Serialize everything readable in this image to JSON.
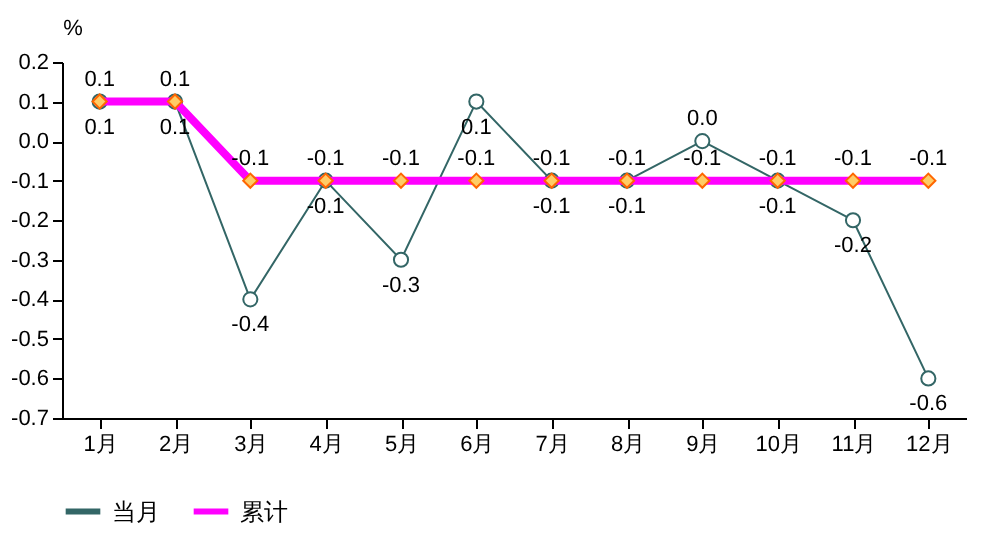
{
  "chart_data": {
    "type": "line",
    "ylabel": "%",
    "categories": [
      "1月",
      "2月",
      "3月",
      "4月",
      "5月",
      "6月",
      "7月",
      "8月",
      "9月",
      "10月",
      "11月",
      "12月"
    ],
    "series": [
      {
        "name": "当月",
        "color": "#336666",
        "marker": "circle",
        "values": [
          0.1,
          0.1,
          -0.4,
          -0.1,
          -0.3,
          0.1,
          -0.1,
          -0.1,
          0.0,
          -0.1,
          -0.2,
          -0.6
        ],
        "value_labels": [
          "0.1",
          "0.1",
          "-0.4",
          "-0.1",
          "-0.3",
          "0.1",
          "-0.1",
          "-0.1",
          "0.0",
          "-0.1",
          "-0.2",
          "-0.6"
        ]
      },
      {
        "name": "累计",
        "color": "#ff00ff",
        "marker": "diamond",
        "values": [
          0.1,
          0.1,
          -0.1,
          -0.1,
          -0.1,
          -0.1,
          -0.1,
          -0.1,
          -0.1,
          -0.1,
          -0.1,
          -0.1
        ],
        "value_labels": [
          "0.1",
          "0.1",
          "-0.1",
          "-0.1",
          "-0.1",
          "-0.1",
          "-0.1",
          "-0.1",
          "-0.1",
          "-0.1",
          "-0.1",
          "-0.1"
        ]
      }
    ],
    "ylim": [
      -0.7,
      0.2
    ],
    "yticks": [
      -0.7,
      -0.6,
      -0.5,
      -0.4,
      -0.3,
      -0.2,
      -0.1,
      {
        "value": 0,
        "label": "0.0"
      },
      0.1,
      0.2
    ],
    "grid": false,
    "legend": "bottom"
  }
}
